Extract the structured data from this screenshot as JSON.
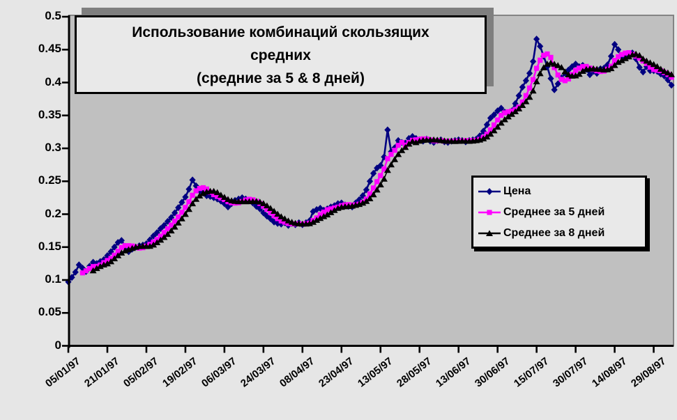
{
  "chart_data": {
    "type": "line",
    "title_lines": [
      "Использование комбинаций скользящих",
      "средних",
      "(средние за 5 & 8 дней)"
    ],
    "ylabel": "",
    "xlabel": "",
    "ylim": [
      0,
      0.5
    ],
    "y_tick_step": 0.05,
    "y_tick_labels": [
      "0",
      "0.05",
      "0.1",
      "0.15",
      "0.2",
      "0.25",
      "0.3",
      "0.35",
      "0.4",
      "0.45",
      "0.5"
    ],
    "x_labels": [
      "05/01/97",
      "21/01/97",
      "05/02/97",
      "19/02/97",
      "06/03/97",
      "24/03/97",
      "08/04/97",
      "23/04/97",
      "13/05/97",
      "28/05/97",
      "13/06/97",
      "30/06/97",
      "15/07/97",
      "30/07/97",
      "14/08/97",
      "29/08/97"
    ],
    "x_label_every_n_points": 11,
    "grid": false,
    "plot_bg_color": "#c0c0c0",
    "outer_bg_color": "#e6e6e6",
    "axis_color": "#000000",
    "plot_border_color": "#848484",
    "legend_position": "middle-right",
    "series": [
      {
        "name": "Цена",
        "color": "#000080",
        "marker": "diamond",
        "values": [
          0.097,
          0.104,
          0.112,
          0.123,
          0.118,
          0.113,
          0.121,
          0.127,
          0.125,
          0.128,
          0.131,
          0.137,
          0.143,
          0.15,
          0.157,
          0.16,
          0.151,
          0.143,
          0.147,
          0.15,
          0.152,
          0.153,
          0.155,
          0.161,
          0.167,
          0.172,
          0.178,
          0.183,
          0.189,
          0.195,
          0.202,
          0.21,
          0.218,
          0.226,
          0.238,
          0.252,
          0.243,
          0.236,
          0.232,
          0.228,
          0.227,
          0.225,
          0.223,
          0.22,
          0.216,
          0.211,
          0.216,
          0.221,
          0.223,
          0.225,
          0.223,
          0.221,
          0.217,
          0.212,
          0.208,
          0.202,
          0.197,
          0.193,
          0.188,
          0.186,
          0.185,
          0.187,
          0.183,
          0.186,
          0.184,
          0.187,
          0.184,
          0.187,
          0.19,
          0.204,
          0.207,
          0.209,
          0.206,
          0.208,
          0.211,
          0.213,
          0.216,
          0.217,
          0.214,
          0.212,
          0.211,
          0.217,
          0.222,
          0.228,
          0.237,
          0.25,
          0.262,
          0.27,
          0.274,
          0.287,
          0.328,
          0.295,
          0.301,
          0.312,
          0.309,
          0.308,
          0.315,
          0.318,
          0.315,
          0.313,
          0.311,
          0.314,
          0.311,
          0.309,
          0.312,
          0.313,
          0.31,
          0.309,
          0.311,
          0.312,
          0.313,
          0.312,
          0.31,
          0.312,
          0.313,
          0.314,
          0.319,
          0.326,
          0.336,
          0.346,
          0.351,
          0.357,
          0.361,
          0.355,
          0.354,
          0.357,
          0.368,
          0.38,
          0.393,
          0.403,
          0.414,
          0.432,
          0.466,
          0.455,
          0.44,
          0.424,
          0.406,
          0.389,
          0.398,
          0.407,
          0.414,
          0.419,
          0.424,
          0.428,
          0.424,
          0.426,
          0.42,
          0.412,
          0.417,
          0.414,
          0.421,
          0.422,
          0.427,
          0.44,
          0.458,
          0.45,
          0.438,
          0.438,
          0.443,
          0.445,
          0.436,
          0.423,
          0.416,
          0.424,
          0.418,
          0.418,
          0.417,
          0.413,
          0.41,
          0.404,
          0.396
        ]
      },
      {
        "name": "Среднее за 5 дней",
        "color": "#ff00ff",
        "marker": "square",
        "derived": "moving_average_of_series_0",
        "window": 5
      },
      {
        "name": "Среднее за 8 дней",
        "color": "#000000",
        "marker": "triangle",
        "derived": "moving_average_of_series_0",
        "window": 8
      }
    ]
  }
}
